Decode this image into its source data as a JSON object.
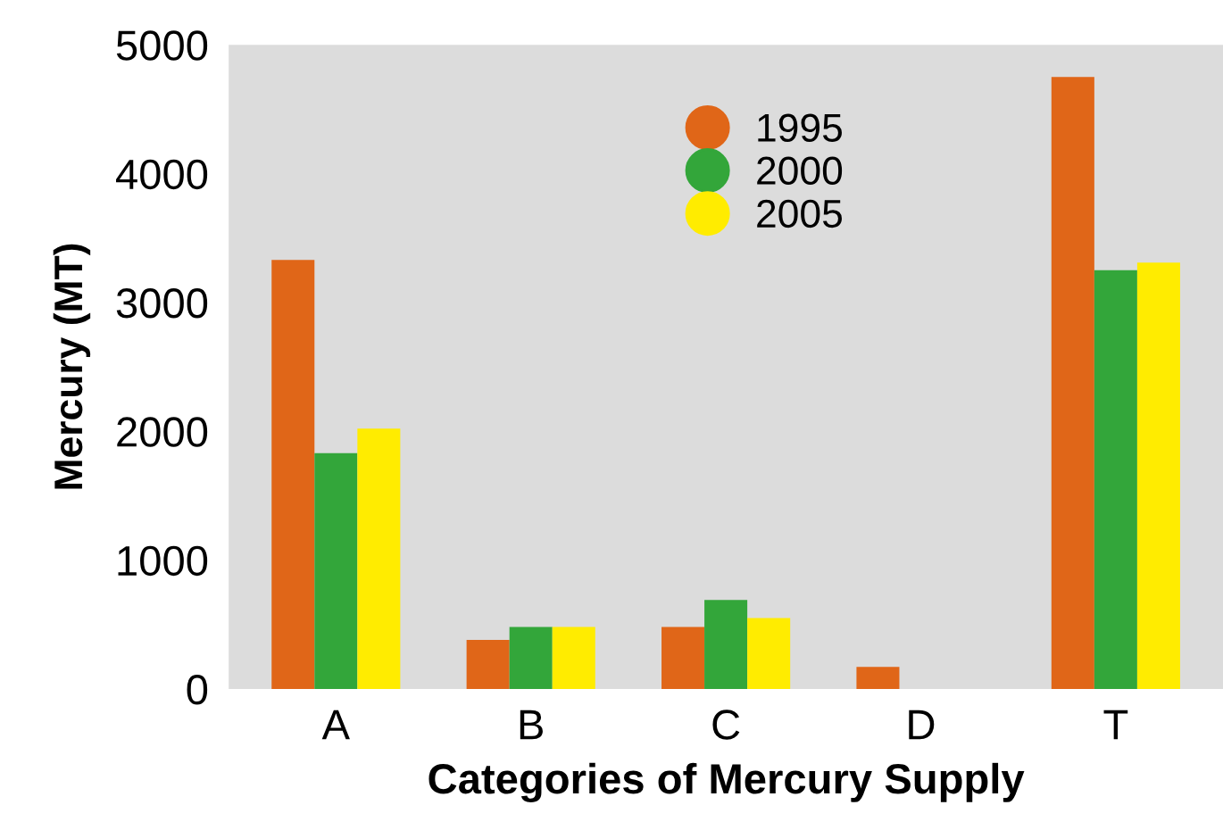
{
  "chart_data": {
    "type": "bar",
    "xlabel": "Categories of Mercury Supply",
    "ylabel": "Mercury (MT)",
    "categories": [
      "A",
      "B",
      "C",
      "D",
      "T"
    ],
    "series": [
      {
        "name": "1995",
        "color": "#e06618",
        "values": [
          3330,
          380,
          480,
          170,
          4750
        ]
      },
      {
        "name": "2000",
        "color": "#33a63a",
        "values": [
          1830,
          480,
          690,
          null,
          3250
        ]
      },
      {
        "name": "2005",
        "color": "#ffec00",
        "values": [
          2020,
          480,
          550,
          null,
          3310
        ]
      }
    ],
    "ylim": [
      0,
      5000
    ],
    "yticks": [
      0,
      1000,
      2000,
      3000,
      4000,
      5000
    ],
    "grid": false,
    "legend": "top",
    "marker": "circle"
  }
}
